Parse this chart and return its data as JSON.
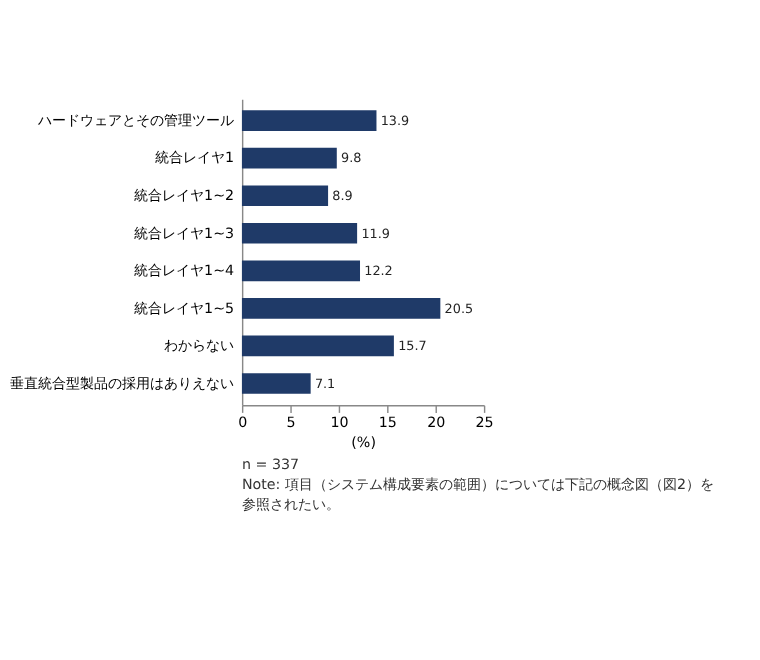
{
  "chart_data": {
    "type": "bar",
    "orientation": "horizontal",
    "categories": [
      "ハードウェアとその管理ツール",
      "統合レイヤ1",
      "統合レイヤ1~2",
      "統合レイヤ1~3",
      "統合レイヤ1~4",
      "統合レイヤ1~5",
      "わからない",
      "垂直統合型製品の採用はありえない"
    ],
    "values": [
      13.9,
      9.8,
      8.9,
      11.9,
      12.2,
      20.5,
      15.7,
      7.1
    ],
    "color": "#1f3a68",
    "xlim": [
      0,
      25
    ],
    "xticks": [
      0,
      5,
      10,
      15,
      20,
      25
    ],
    "xlabel": "(%)",
    "data_labels": true,
    "grid": false,
    "annotations": [
      "n = 337",
      "Note: 項目（システム構成要素の範囲）については下記の概念図（図2）を参照されたい。"
    ]
  }
}
